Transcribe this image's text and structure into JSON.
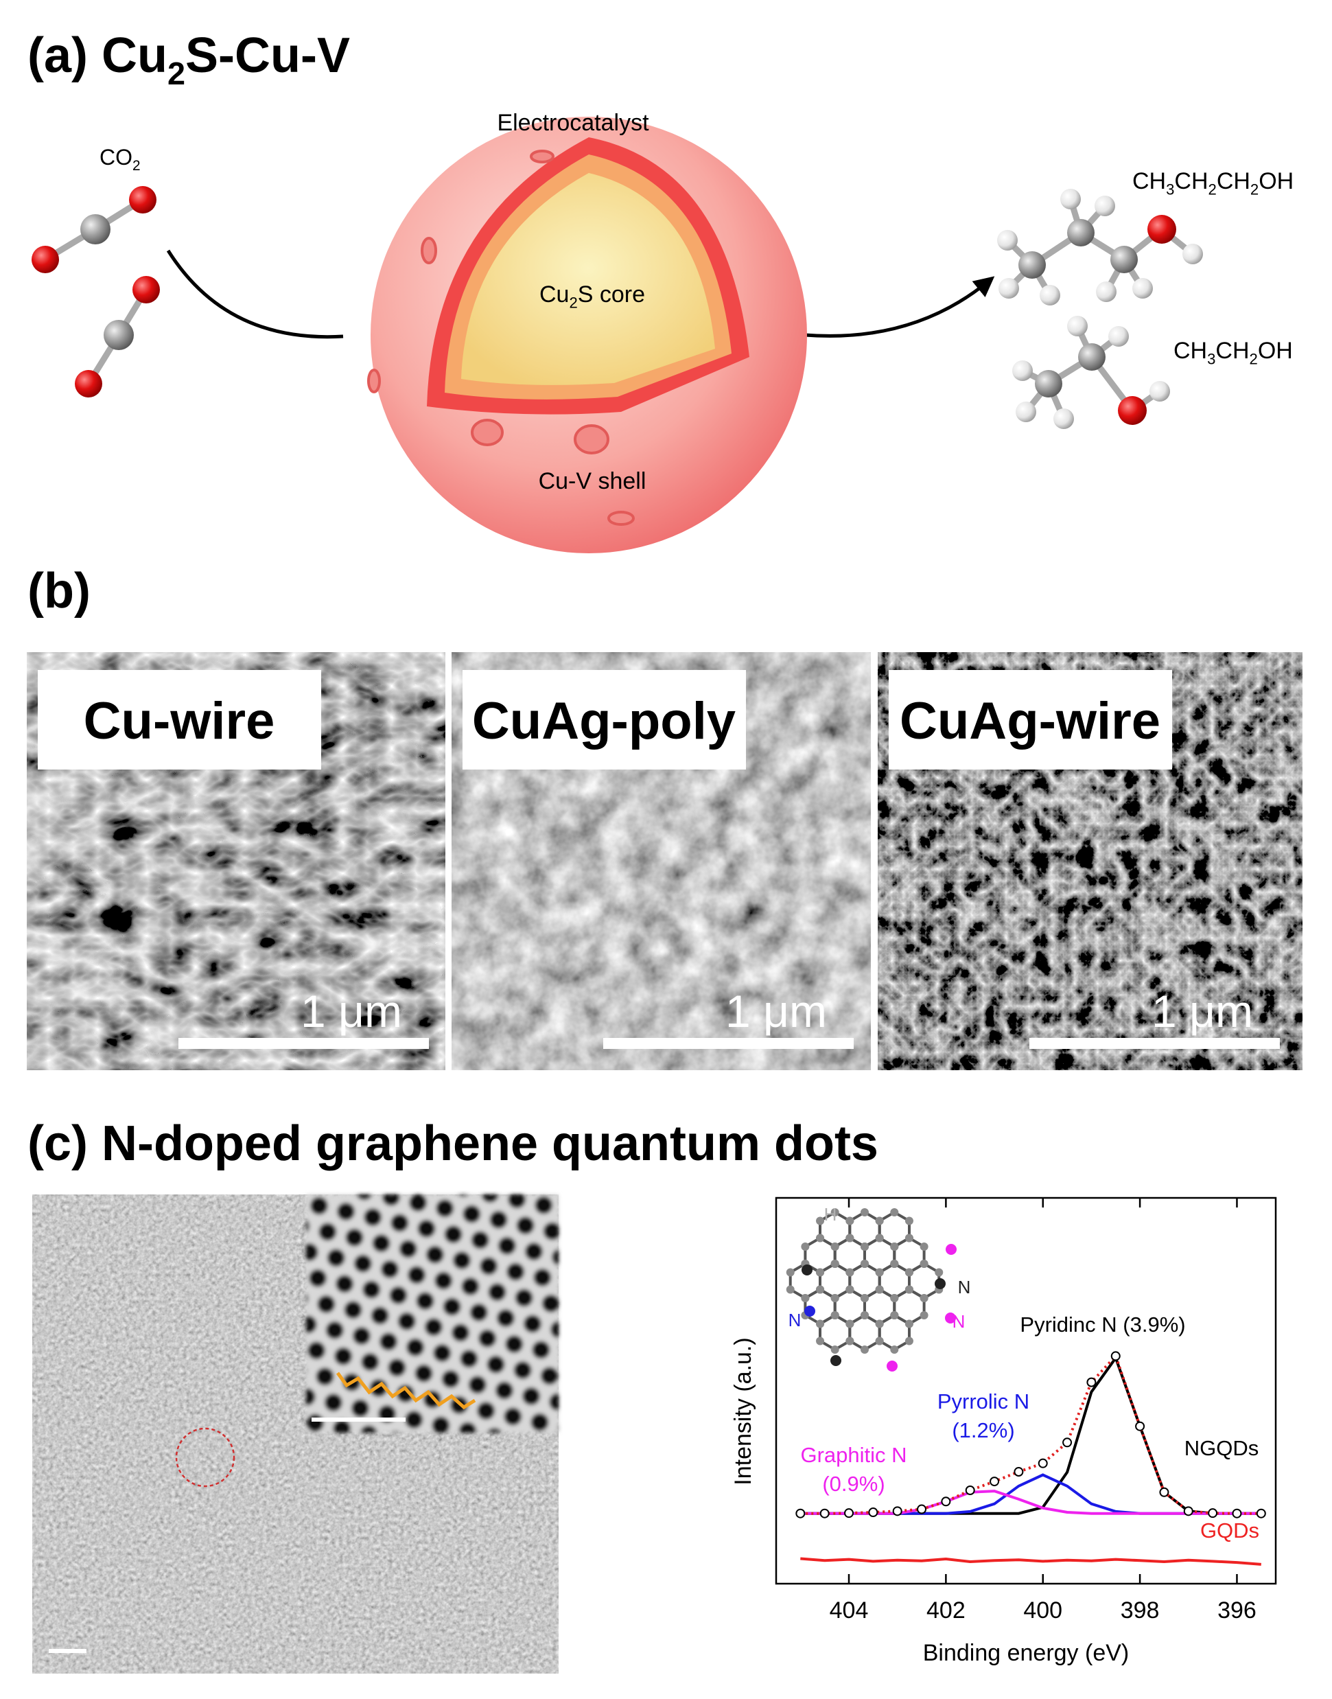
{
  "panel_a": {
    "title": [
      "(a) Cu",
      "2",
      "S-Cu-V"
    ],
    "reactant": [
      "CO",
      "2"
    ],
    "catalyst_label": "Electrocatalyst",
    "core_label": [
      "Cu",
      "2",
      "S core"
    ],
    "shell_label": "Cu-V shell",
    "products": [
      [
        "CH",
        "3",
        "CH",
        "2",
        "CH",
        "2",
        "OH"
      ],
      [
        "CH",
        "3",
        "CH",
        "2",
        "OH"
      ]
    ]
  },
  "panel_b": {
    "title": "(b)",
    "images": [
      {
        "label": "Cu-wire",
        "scale": "1 μm"
      },
      {
        "label": "CuAg-poly",
        "scale": "1 μm"
      },
      {
        "label": "CuAg-wire",
        "scale": "1 μm"
      }
    ]
  },
  "panel_c": {
    "title": "(c) N-doped graphene quantum dots",
    "inset_labels": [
      {
        "text": "H",
        "color": "#b0b0b0"
      },
      {
        "text": "N",
        "color": "#222222"
      },
      {
        "text": "N",
        "color": "#ee22ee"
      },
      {
        "text": "N",
        "color": "#2222dd"
      }
    ]
  },
  "chart_data": {
    "type": "line",
    "xlabel": "Binding energy (eV)",
    "ylabel": "Intensity (a.u.)",
    "x": [
      405,
      404.5,
      404,
      403.5,
      403,
      402.5,
      402,
      401.5,
      401,
      400.5,
      400,
      399.5,
      399,
      398.5,
      398,
      397.5,
      397,
      396.5,
      396,
      395.5
    ],
    "xlim": [
      405.5,
      395.2
    ],
    "xticks": [
      404,
      402,
      400,
      398,
      396
    ],
    "ylim": [
      0,
      100
    ],
    "series": [
      {
        "name": "NGQDs",
        "color": "#000000",
        "fit_color": "#e02020",
        "marker": "circle",
        "values": [
          18.2,
          18.2,
          18.3,
          18.5,
          18.8,
          19.3,
          21.3,
          24.2,
          26.5,
          29.0,
          31.2,
          36.6,
          52.2,
          59.0,
          40.8,
          23.7,
          18.8,
          18.3,
          18.2,
          18.2
        ]
      },
      {
        "label_lines": [
          "Pyridinc N (3.9%)"
        ],
        "color": "#000000",
        "values": [
          18.2,
          18.2,
          18.2,
          18.2,
          18.2,
          18.2,
          18.2,
          18.2,
          18.2,
          18.2,
          19.8,
          28.9,
          49.7,
          58.5,
          40.8,
          23.7,
          18.8,
          18.2,
          18.2,
          18.2
        ]
      },
      {
        "label_lines": [
          "Pyrrolic N",
          "(1.2%)"
        ],
        "color": "#1a1ae6",
        "values": [
          18.2,
          18.2,
          18.2,
          18.2,
          18.2,
          18.2,
          18.2,
          18.7,
          20.7,
          25.3,
          28.2,
          25.3,
          20.7,
          18.7,
          18.2,
          18.2,
          18.2,
          18.2,
          18.2,
          18.2
        ]
      },
      {
        "label_lines": [
          "Graphitic N",
          "(0.9%)"
        ],
        "color": "#ee22ee",
        "values": [
          18.2,
          18.2,
          18.2,
          18.2,
          18.2,
          19.3,
          21.3,
          23.7,
          24.0,
          21.9,
          19.6,
          18.5,
          18.2,
          18.2,
          18.2,
          18.2,
          18.2,
          18.2,
          18.2,
          18.2
        ]
      },
      {
        "name": "GQDs",
        "color": "#ee2222",
        "values": [
          6.5,
          6.0,
          6.3,
          5.8,
          6.1,
          5.9,
          6.4,
          5.7,
          6.0,
          6.2,
          5.8,
          6.1,
          5.9,
          6.3,
          6.0,
          5.7,
          6.1,
          5.8,
          5.5,
          5.0
        ]
      }
    ]
  }
}
